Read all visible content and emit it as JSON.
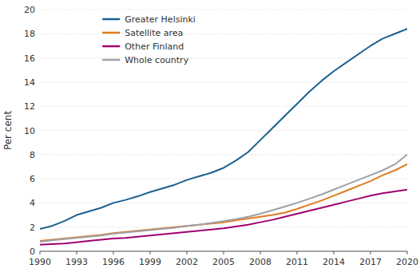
{
  "chart_data": {
    "type": "line",
    "ylabel": "Per cent",
    "x": [
      1990,
      1991,
      1992,
      1993,
      1994,
      1995,
      1996,
      1997,
      1998,
      1999,
      2000,
      2001,
      2002,
      2003,
      2004,
      2005,
      2006,
      2007,
      2008,
      2009,
      2010,
      2011,
      2012,
      2013,
      2014,
      2015,
      2016,
      2017,
      2018,
      2019,
      2020
    ],
    "series": [
      {
        "name": "Greater Helsinki",
        "color": "#1a6090",
        "values": [
          1.85,
          2.1,
          2.5,
          3.0,
          3.3,
          3.6,
          4.0,
          4.25,
          4.55,
          4.9,
          5.2,
          5.5,
          5.9,
          6.2,
          6.5,
          6.9,
          7.5,
          8.2,
          9.2,
          10.2,
          11.2,
          12.2,
          13.2,
          14.1,
          14.9,
          15.6,
          16.3,
          17.0,
          17.6,
          18.0,
          18.4
        ]
      },
      {
        "name": "Satellite area",
        "color": "#e07b20",
        "values": [
          0.85,
          0.95,
          1.05,
          1.15,
          1.25,
          1.35,
          1.5,
          1.6,
          1.7,
          1.8,
          1.9,
          2.0,
          2.1,
          2.2,
          2.3,
          2.4,
          2.55,
          2.7,
          2.85,
          3.0,
          3.2,
          3.5,
          3.85,
          4.2,
          4.6,
          5.0,
          5.4,
          5.8,
          6.3,
          6.7,
          7.2
        ]
      },
      {
        "name": "Other Finland",
        "color": "#a0006e",
        "values": [
          0.55,
          0.6,
          0.65,
          0.75,
          0.85,
          0.95,
          1.05,
          1.1,
          1.2,
          1.3,
          1.4,
          1.5,
          1.6,
          1.7,
          1.8,
          1.9,
          2.05,
          2.2,
          2.4,
          2.6,
          2.85,
          3.1,
          3.35,
          3.6,
          3.85,
          4.1,
          4.35,
          4.6,
          4.8,
          4.95,
          5.1
        ]
      },
      {
        "name": "Whole country",
        "color": "#a0a0a8",
        "values": [
          0.8,
          0.9,
          1.0,
          1.1,
          1.2,
          1.3,
          1.45,
          1.55,
          1.65,
          1.75,
          1.85,
          1.95,
          2.1,
          2.2,
          2.35,
          2.5,
          2.65,
          2.85,
          3.1,
          3.4,
          3.7,
          4.0,
          4.35,
          4.7,
          5.1,
          5.5,
          5.9,
          6.3,
          6.7,
          7.2,
          8.0
        ]
      }
    ],
    "xlim": [
      1990,
      2020
    ],
    "xticks": [
      1990,
      1993,
      1996,
      1999,
      2002,
      2005,
      2008,
      2011,
      2014,
      2017,
      2020
    ],
    "ylim": [
      0,
      20
    ],
    "yticks": [
      0,
      2,
      4,
      6,
      8,
      10,
      12,
      14,
      16,
      18,
      20
    ],
    "grid": true,
    "legend": "upper left"
  }
}
